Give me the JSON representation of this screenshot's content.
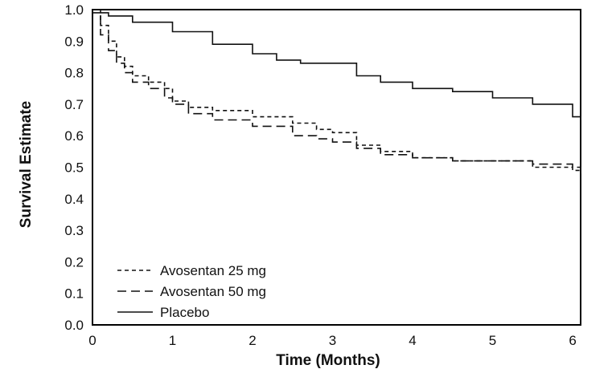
{
  "chart_data": {
    "type": "line",
    "title": "",
    "xlabel": "Time (Months)",
    "ylabel": "Survival Estimate",
    "xlim": [
      0,
      6.1
    ],
    "ylim": [
      0.0,
      1.0
    ],
    "xticks": [
      "0",
      "1",
      "2",
      "3",
      "4",
      "5",
      "6"
    ],
    "yticks": [
      "0.0",
      "0.1",
      "0.2",
      "0.3",
      "0.4",
      "0.5",
      "0.6",
      "0.7",
      "0.8",
      "0.9",
      "1.0"
    ],
    "grid": false,
    "legend_position": "bottom-left",
    "series": [
      {
        "name": "Avosentan 25 mg",
        "style": "short-dash",
        "x": [
          0,
          0.1,
          0.2,
          0.3,
          0.4,
          0.5,
          0.7,
          0.9,
          1.0,
          1.2,
          1.5,
          2.0,
          2.5,
          2.8,
          3.0,
          3.3,
          3.6,
          4.0,
          4.5,
          5.0,
          5.5,
          6.0,
          6.1
        ],
        "y": [
          1.0,
          0.95,
          0.9,
          0.85,
          0.82,
          0.79,
          0.77,
          0.75,
          0.71,
          0.69,
          0.68,
          0.66,
          0.64,
          0.62,
          0.61,
          0.57,
          0.55,
          0.53,
          0.52,
          0.52,
          0.5,
          0.49,
          0.48
        ]
      },
      {
        "name": "Avosentan 50 mg",
        "style": "long-dash",
        "x": [
          0,
          0.1,
          0.2,
          0.3,
          0.4,
          0.5,
          0.7,
          0.9,
          1.0,
          1.2,
          1.5,
          2.0,
          2.5,
          2.8,
          3.0,
          3.3,
          3.6,
          4.0,
          4.5,
          5.0,
          5.5,
          6.0,
          6.1
        ],
        "y": [
          1.0,
          0.92,
          0.87,
          0.83,
          0.8,
          0.77,
          0.75,
          0.72,
          0.7,
          0.67,
          0.65,
          0.63,
          0.6,
          0.59,
          0.58,
          0.56,
          0.54,
          0.53,
          0.52,
          0.52,
          0.51,
          0.5,
          0.48
        ]
      },
      {
        "name": "Placebo",
        "style": "solid",
        "x": [
          0,
          0.2,
          0.5,
          1.0,
          1.5,
          2.0,
          2.3,
          2.6,
          3.0,
          3.3,
          3.6,
          4.0,
          4.5,
          5.0,
          5.5,
          6.0,
          6.1
        ],
        "y": [
          0.99,
          0.98,
          0.96,
          0.93,
          0.89,
          0.86,
          0.84,
          0.83,
          0.83,
          0.79,
          0.77,
          0.75,
          0.74,
          0.72,
          0.7,
          0.66,
          0.65
        ]
      }
    ]
  }
}
